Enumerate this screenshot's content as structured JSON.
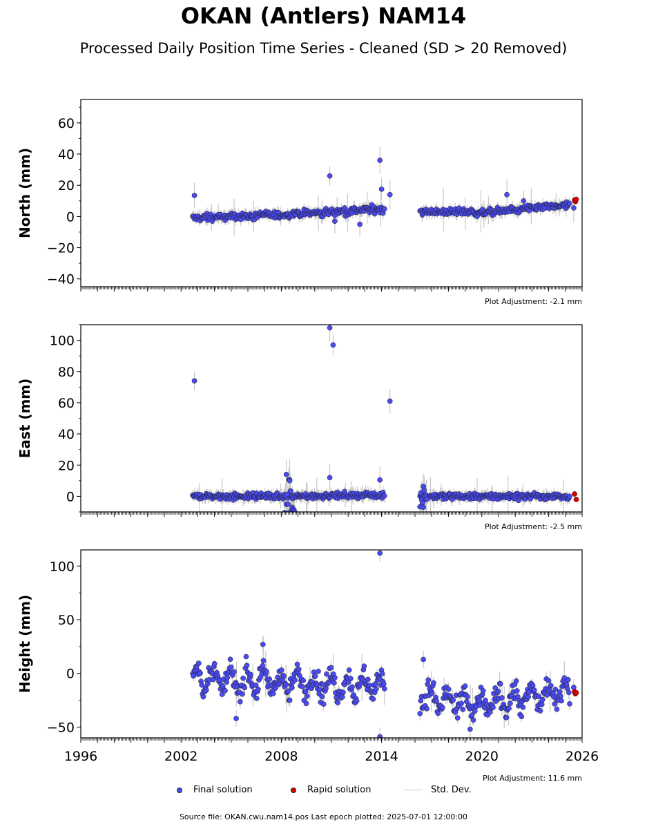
{
  "title": "OKAN (Antlers) NAM14",
  "subtitle": "Processed Daily Position Time Series - Cleaned (SD > 20 Removed)",
  "legend": {
    "final": "Final solution",
    "rapid": "Rapid solution",
    "std": "Std. Dev."
  },
  "footer": "Source file: OKAN.cwu.nam14.pos  Last epoch plotted: 2025-07-01 12:00:00",
  "colors": {
    "final": "#4a4aee",
    "rapid": "#dd0000",
    "std": "#c8c8c8",
    "edge": "#1a1a1a"
  },
  "chart_data": [
    {
      "type": "scatter",
      "ylabel": "North (mm)",
      "adjustment": "Plot Adjustment: -2.1 mm",
      "xlim": [
        1996,
        2026
      ],
      "ylim": [
        -45,
        75
      ],
      "yticks": [
        -40,
        -20,
        0,
        20,
        40,
        60
      ],
      "trend": [
        [
          2002.7,
          -1
        ],
        [
          2008,
          1
        ],
        [
          2014.2,
          5
        ],
        [
          2016.3,
          3.5
        ],
        [
          2020,
          2.5
        ],
        [
          2025.3,
          7
        ]
      ],
      "noise": 2.2,
      "final_outliers": [
        [
          2002.8,
          13.5
        ],
        [
          2010.9,
          26
        ],
        [
          2011.2,
          -3
        ],
        [
          2012.7,
          -5
        ],
        [
          2013.9,
          36
        ],
        [
          2014.0,
          17.5
        ],
        [
          2014.5,
          14
        ],
        [
          2021.5,
          14
        ],
        [
          2022.5,
          10
        ],
        [
          2025.5,
          5.5
        ]
      ],
      "rapid": [
        [
          2025.55,
          10.5
        ],
        [
          2025.6,
          9.5
        ],
        [
          2025.65,
          11
        ]
      ]
    },
    {
      "type": "scatter",
      "ylabel": "East (mm)",
      "adjustment": "Plot Adjustment: -2.5 mm",
      "xlim": [
        1996,
        2026
      ],
      "ylim": [
        -10,
        110
      ],
      "yticks": [
        0,
        20,
        40,
        60,
        80,
        100
      ],
      "trend": [
        [
          2002.7,
          0
        ],
        [
          2008,
          0
        ],
        [
          2014.2,
          1
        ],
        [
          2016.3,
          0
        ],
        [
          2020,
          0
        ],
        [
          2025.3,
          0
        ]
      ],
      "noise": 2.0,
      "final_outliers": [
        [
          2002.8,
          74
        ],
        [
          2008.3,
          14
        ],
        [
          2008.4,
          -5
        ],
        [
          2008.5,
          10
        ],
        [
          2010.9,
          12
        ],
        [
          2010.9,
          108
        ],
        [
          2011.1,
          97
        ],
        [
          2013.9,
          10.5
        ],
        [
          2014.5,
          61
        ],
        [
          2016.5,
          -7
        ]
      ],
      "rapid": [
        [
          2025.55,
          1.5
        ],
        [
          2025.65,
          -2
        ]
      ]
    },
    {
      "type": "scatter",
      "ylabel": "Height (mm)",
      "adjustment": "Plot Adjustment: 11.6 mm",
      "xlim": [
        1996,
        2026
      ],
      "ylim": [
        -60,
        115
      ],
      "yticks": [
        -50,
        0,
        50,
        100
      ],
      "xticks": [
        1996,
        2002,
        2008,
        2014,
        2020,
        2026
      ],
      "trend": [
        [
          2002.7,
          -5
        ],
        [
          2008,
          -8
        ],
        [
          2014.2,
          -12
        ],
        [
          2016.3,
          -20
        ],
        [
          2019.5,
          -30
        ],
        [
          2025.3,
          -15
        ]
      ],
      "noise": 10.0,
      "final_outliers": [
        [
          2013.9,
          112
        ],
        [
          2013.9,
          -59
        ],
        [
          2005.3,
          -42
        ],
        [
          2006.9,
          27
        ],
        [
          2016.5,
          13
        ],
        [
          2019.3,
          -52
        ],
        [
          2025.5,
          -13
        ]
      ],
      "rapid": [
        [
          2025.55,
          -17
        ],
        [
          2025.6,
          -19
        ],
        [
          2025.65,
          -18
        ]
      ]
    }
  ]
}
